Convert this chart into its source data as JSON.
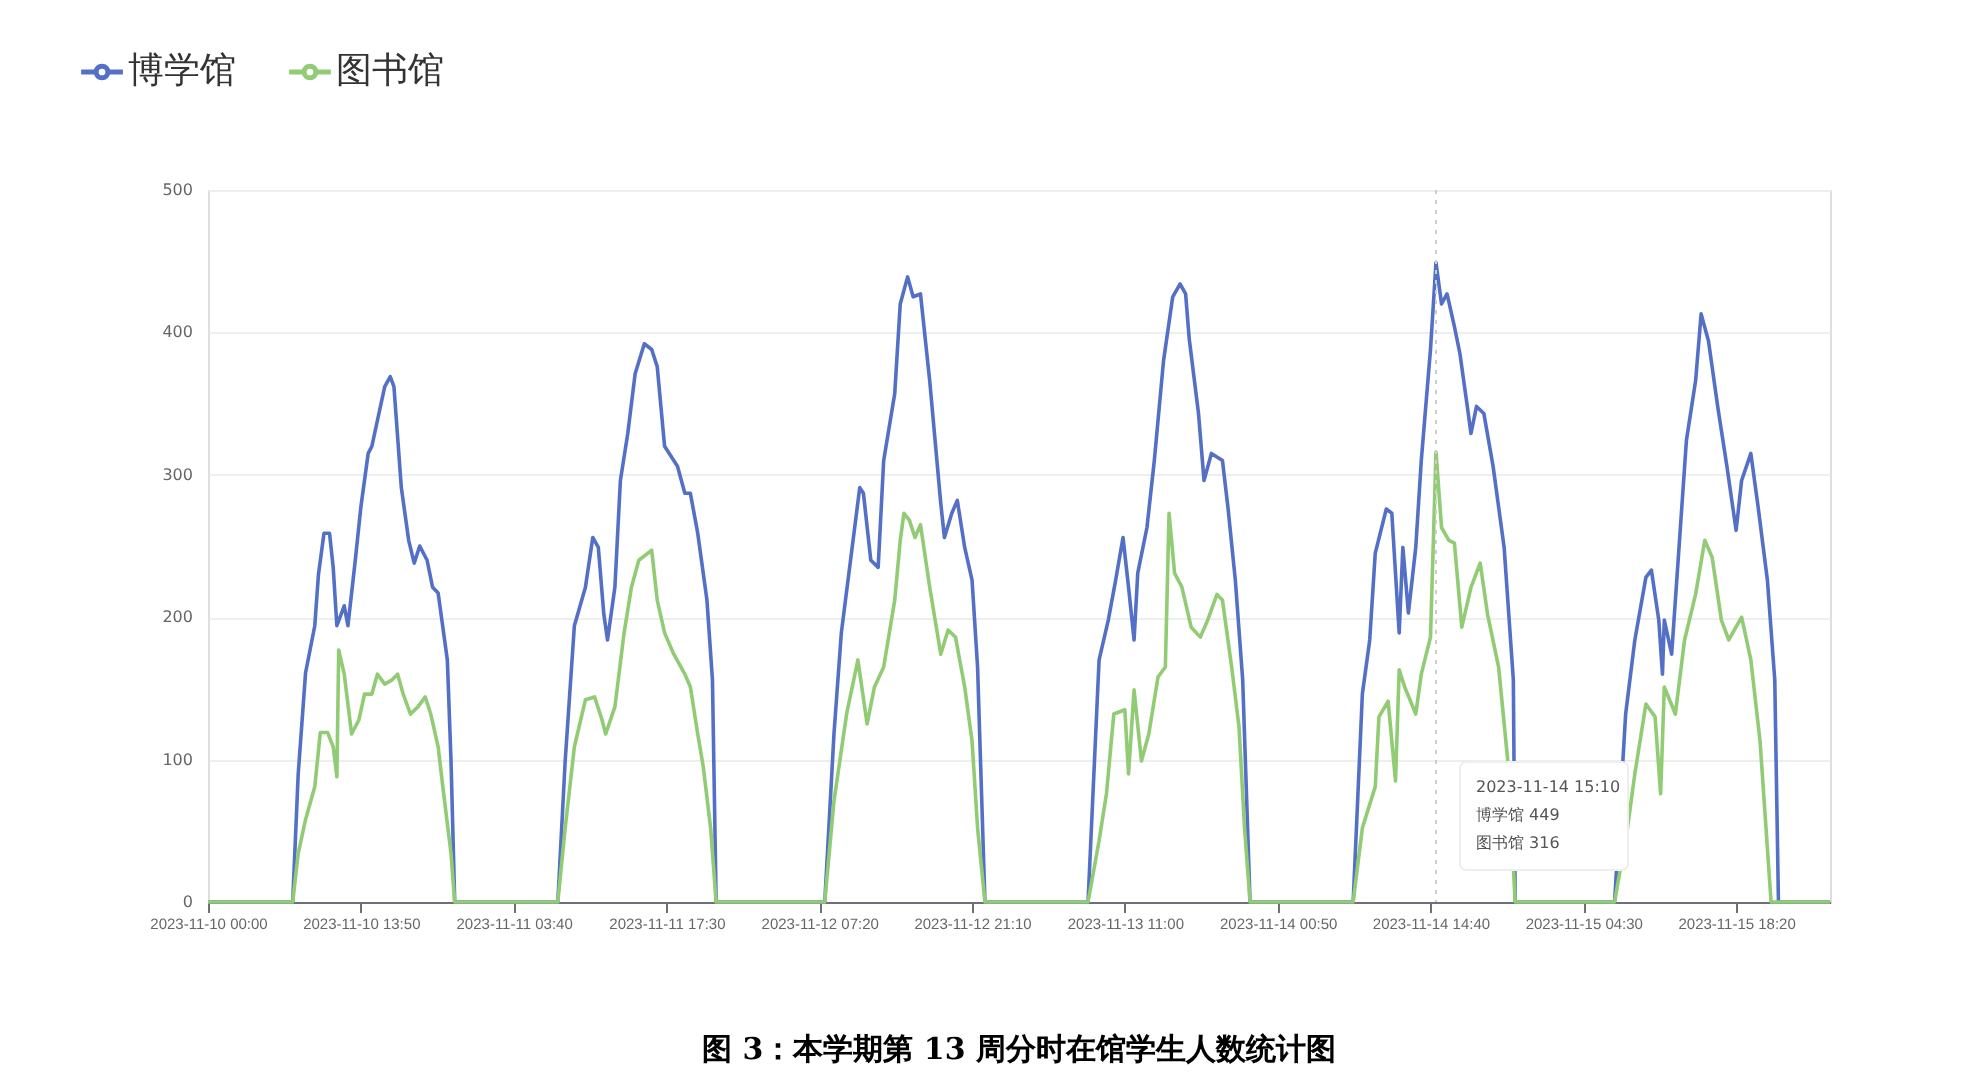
{
  "chart_data": {
    "type": "line",
    "title": "图 3：本学期第 13 周分时在馆学生人数统计图",
    "series": [
      {
        "name": "博学馆",
        "color": "#5470c6",
        "x": [
          "2023-11-10T00:00",
          "2023-11-10T07:40",
          "2023-11-10T08:10",
          "2023-11-10T08:50",
          "2023-11-10T09:40",
          "2023-11-10T10:00",
          "2023-11-10T10:30",
          "2023-11-10T11:00",
          "2023-11-10T11:20",
          "2023-11-10T11:40",
          "2023-11-10T12:20",
          "2023-11-10T12:40",
          "2023-11-10T13:20",
          "2023-11-10T13:50",
          "2023-11-10T14:30",
          "2023-11-10T14:50",
          "2023-11-10T15:20",
          "2023-11-10T16:00",
          "2023-11-10T16:30",
          "2023-11-10T16:50",
          "2023-11-10T17:30",
          "2023-11-10T18:10",
          "2023-11-10T18:40",
          "2023-11-10T19:10",
          "2023-11-10T19:50",
          "2023-11-10T20:20",
          "2023-11-10T20:50",
          "2023-11-10T21:40",
          "2023-11-10T22:00",
          "2023-11-10T22:20",
          "2023-11-11T07:40",
          "2023-11-11T08:20",
          "2023-11-11T09:10",
          "2023-11-11T10:10",
          "2023-11-11T10:50",
          "2023-11-11T11:20",
          "2023-11-11T11:50",
          "2023-11-11T12:10",
          "2023-11-11T12:50",
          "2023-11-11T13:20",
          "2023-11-11T14:00",
          "2023-11-11T14:40",
          "2023-11-11T15:30",
          "2023-11-11T16:10",
          "2023-11-11T16:40",
          "2023-11-11T17:20",
          "2023-11-11T18:30",
          "2023-11-11T19:10",
          "2023-11-11T19:40",
          "2023-11-11T20:20",
          "2023-11-11T21:10",
          "2023-11-11T21:40",
          "2023-11-11T22:00",
          "2023-11-12T07:50",
          "2023-11-12T08:40",
          "2023-11-12T09:20",
          "2023-11-12T10:10",
          "2023-11-12T11:00",
          "2023-11-12T11:20",
          "2023-11-12T12:00",
          "2023-11-12T12:40",
          "2023-11-12T13:10",
          "2023-11-12T14:10",
          "2023-11-12T14:40",
          "2023-11-12T15:20",
          "2023-11-12T15:50",
          "2023-11-12T16:30",
          "2023-11-12T17:20",
          "2023-11-12T18:20",
          "2023-11-12T18:40",
          "2023-11-12T19:20",
          "2023-11-12T19:50",
          "2023-11-12T20:30",
          "2023-11-12T21:10",
          "2023-11-12T21:40",
          "2023-11-12T22:20",
          "2023-11-13T07:40",
          "2023-11-13T08:40",
          "2023-11-13T09:30",
          "2023-11-13T10:10",
          "2023-11-13T10:50",
          "2023-11-13T11:20",
          "2023-11-13T11:50",
          "2023-11-13T12:10",
          "2023-11-13T13:00",
          "2023-11-13T13:40",
          "2023-11-13T14:30",
          "2023-11-13T15:20",
          "2023-11-13T16:00",
          "2023-11-13T16:30",
          "2023-11-13T16:50",
          "2023-11-13T17:40",
          "2023-11-13T18:10",
          "2023-11-13T18:50",
          "2023-11-13T19:50",
          "2023-11-13T20:20",
          "2023-11-13T21:00",
          "2023-11-13T21:40",
          "2023-11-13T22:20",
          "2023-11-14T07:40",
          "2023-11-14T08:30",
          "2023-11-14T09:10",
          "2023-11-14T09:40",
          "2023-11-14T10:40",
          "2023-11-14T11:10",
          "2023-11-14T11:50",
          "2023-11-14T12:10",
          "2023-11-14T12:40",
          "2023-11-14T13:20",
          "2023-11-14T13:50",
          "2023-11-14T14:40",
          "2023-11-14T15:10",
          "2023-11-14T15:40",
          "2023-11-14T16:10",
          "2023-11-14T16:50",
          "2023-11-14T17:20",
          "2023-11-14T18:00",
          "2023-11-14T18:20",
          "2023-11-14T18:50",
          "2023-11-14T19:30",
          "2023-11-14T20:20",
          "2023-11-14T21:20",
          "2023-11-14T22:10",
          "2023-11-14T22:20",
          "2023-11-15T07:20",
          "2023-11-15T08:20",
          "2023-11-15T09:10",
          "2023-11-15T10:10",
          "2023-11-15T10:40",
          "2023-11-15T11:20",
          "2023-11-15T11:40",
          "2023-11-15T11:50",
          "2023-11-15T12:30",
          "2023-11-15T13:10",
          "2023-11-15T13:50",
          "2023-11-15T14:40",
          "2023-11-15T15:10",
          "2023-11-15T15:50",
          "2023-11-15T16:40",
          "2023-11-15T17:30",
          "2023-11-15T18:20",
          "2023-11-15T18:50",
          "2023-11-15T19:40",
          "2023-11-15T20:20",
          "2023-11-15T21:10",
          "2023-11-15T21:50",
          "2023-11-15T22:10",
          "2023-11-16T02:50"
        ],
        "values": [
          0,
          0,
          90,
          161,
          194,
          230,
          259,
          259,
          235,
          194,
          208,
          194,
          240,
          277,
          315,
          320,
          338,
          362,
          369,
          362,
          291,
          254,
          238,
          250,
          240,
          221,
          217,
          170,
          99,
          0,
          0,
          99,
          194,
          221,
          256,
          249,
          202,
          184,
          221,
          296,
          329,
          371,
          392,
          388,
          376,
          320,
          306,
          287,
          287,
          259,
          212,
          156,
          0,
          0,
          118,
          189,
          240,
          291,
          287,
          240,
          235,
          310,
          357,
          420,
          439,
          425,
          427,
          366,
          280,
          256,
          273,
          282,
          249,
          226,
          165,
          0,
          0,
          170,
          198,
          226,
          256,
          221,
          184,
          231,
          263,
          310,
          380,
          425,
          434,
          427,
          395,
          343,
          296,
          315,
          310,
          277,
          226,
          156,
          0,
          0,
          146,
          184,
          245,
          276,
          273,
          189,
          249,
          203,
          249,
          310,
          388,
          449,
          420,
          427,
          404,
          385,
          348,
          329,
          348,
          343,
          306,
          249,
          156,
          0,
          0,
          132,
          184,
          228,
          233,
          198,
          160,
          198,
          174,
          249,
          324,
          366,
          413,
          394,
          348,
          306,
          261,
          296,
          315,
          277,
          226,
          156,
          0,
          0
        ]
      },
      {
        "name": "图书馆",
        "color": "#91cc75",
        "x": [
          "2023-11-10T00:00",
          "2023-11-10T07:40",
          "2023-11-10T08:10",
          "2023-11-10T08:50",
          "2023-11-10T09:40",
          "2023-11-10T10:10",
          "2023-11-10T10:50",
          "2023-11-10T11:20",
          "2023-11-10T11:40",
          "2023-11-10T11:50",
          "2023-11-10T12:20",
          "2023-11-10T13:00",
          "2023-11-10T13:40",
          "2023-11-10T14:10",
          "2023-11-10T14:50",
          "2023-11-10T15:20",
          "2023-11-10T16:00",
          "2023-11-10T16:40",
          "2023-11-10T17:10",
          "2023-11-10T17:40",
          "2023-11-10T18:20",
          "2023-11-10T19:00",
          "2023-11-10T19:40",
          "2023-11-10T20:10",
          "2023-11-10T20:50",
          "2023-11-10T21:20",
          "2023-11-10T22:00",
          "2023-11-10T22:20",
          "2023-11-11T07:40",
          "2023-11-11T08:20",
          "2023-11-11T09:10",
          "2023-11-11T10:10",
          "2023-11-11T11:00",
          "2023-11-11T11:40",
          "2023-11-11T12:00",
          "2023-11-11T12:50",
          "2023-11-11T13:40",
          "2023-11-11T14:20",
          "2023-11-11T15:00",
          "2023-11-11T16:10",
          "2023-11-11T16:40",
          "2023-11-11T17:20",
          "2023-11-11T18:10",
          "2023-11-11T19:10",
          "2023-11-11T19:40",
          "2023-11-11T20:20",
          "2023-11-11T20:50",
          "2023-11-11T21:30",
          "2023-11-11T22:00",
          "2023-11-12T07:50",
          "2023-11-12T08:40",
          "2023-11-12T09:50",
          "2023-11-12T10:50",
          "2023-11-12T11:40",
          "2023-11-12T12:20",
          "2023-11-12T13:10",
          "2023-11-12T14:10",
          "2023-11-12T14:40",
          "2023-11-12T15:00",
          "2023-11-12T15:30",
          "2023-11-12T16:00",
          "2023-11-12T16:30",
          "2023-11-12T17:20",
          "2023-11-12T18:20",
          "2023-11-12T19:00",
          "2023-11-12T19:40",
          "2023-11-12T20:30",
          "2023-11-12T21:10",
          "2023-11-12T21:40",
          "2023-11-12T22:20",
          "2023-11-13T07:40",
          "2023-11-13T08:40",
          "2023-11-13T09:20",
          "2023-11-13T10:00",
          "2023-11-13T11:00",
          "2023-11-13T11:20",
          "2023-11-13T11:50",
          "2023-11-13T12:30",
          "2023-11-13T13:10",
          "2023-11-13T14:00",
          "2023-11-13T14:40",
          "2023-11-13T15:00",
          "2023-11-13T15:30",
          "2023-11-13T16:10",
          "2023-11-13T17:00",
          "2023-11-13T17:50",
          "2023-11-13T18:30",
          "2023-11-13T19:20",
          "2023-11-13T19:50",
          "2023-11-13T20:40",
          "2023-11-13T21:20",
          "2023-11-13T21:50",
          "2023-11-13T22:20",
          "2023-11-14T07:40",
          "2023-11-14T08:30",
          "2023-11-14T09:40",
          "2023-11-14T10:00",
          "2023-11-14T10:50",
          "2023-11-14T11:30",
          "2023-11-14T11:50",
          "2023-11-14T12:20",
          "2023-11-14T13:20",
          "2023-11-14T13:50",
          "2023-11-14T14:40",
          "2023-11-14T15:10",
          "2023-11-14T15:40",
          "2023-11-14T16:20",
          "2023-11-14T16:50",
          "2023-11-14T17:30",
          "2023-11-14T18:20",
          "2023-11-14T19:10",
          "2023-11-14T19:50",
          "2023-11-14T20:50",
          "2023-11-14T21:40",
          "2023-11-14T22:20",
          "2023-11-15T07:20",
          "2023-11-15T08:30",
          "2023-11-15T09:10",
          "2023-11-15T10:10",
          "2023-11-15T11:00",
          "2023-11-15T11:30",
          "2023-11-15T11:50",
          "2023-11-15T12:50",
          "2023-11-15T13:40",
          "2023-11-15T14:40",
          "2023-11-15T15:30",
          "2023-11-15T16:10",
          "2023-11-15T17:00",
          "2023-11-15T17:40",
          "2023-11-15T18:50",
          "2023-11-15T19:40",
          "2023-11-15T20:30",
          "2023-11-15T21:30",
          "2023-11-16T02:50"
        ],
        "values": [
          0,
          0,
          34,
          58,
          81,
          119,
          119,
          109,
          88,
          177,
          160,
          118,
          128,
          146,
          146,
          160,
          153,
          156,
          160,
          146,
          132,
          137,
          144,
          132,
          109,
          76,
          34,
          0,
          0,
          52,
          109,
          142,
          144,
          128,
          118,
          137,
          189,
          221,
          240,
          247,
          212,
          189,
          174,
          160,
          151,
          118,
          95,
          52,
          0,
          0,
          71,
          133,
          170,
          125,
          151,
          165,
          212,
          254,
          273,
          268,
          256,
          265,
          221,
          174,
          191,
          186,
          151,
          113,
          52,
          0,
          0,
          43,
          76,
          132,
          135,
          90,
          149,
          99,
          118,
          158,
          165,
          273,
          231,
          221,
          193,
          186,
          198,
          216,
          212,
          165,
          123,
          52,
          0,
          0,
          52,
          81,
          130,
          141,
          85,
          163,
          151,
          132,
          160,
          186,
          316,
          263,
          254,
          252,
          193,
          221,
          238,
          202,
          165,
          99,
          0,
          0,
          52,
          90,
          139,
          130,
          76,
          151,
          132,
          184,
          216,
          254,
          242,
          198,
          184,
          200,
          170,
          113,
          0,
          0
        ]
      }
    ],
    "xlim": [
      "2023-11-10T00:00",
      "2023-11-16T02:50"
    ],
    "xticks": [
      {
        "value": "2023-11-10T00:00",
        "label": "2023-11-10 00:00"
      },
      {
        "value": "2023-11-10T13:50",
        "label": "2023-11-10 13:50"
      },
      {
        "value": "2023-11-11T03:40",
        "label": "2023-11-11 03:40"
      },
      {
        "value": "2023-11-11T17:30",
        "label": "2023-11-11 17:30"
      },
      {
        "value": "2023-11-12T07:20",
        "label": "2023-11-12 07:20"
      },
      {
        "value": "2023-11-12T21:10",
        "label": "2023-11-12 21:10"
      },
      {
        "value": "2023-11-13T11:00",
        "label": "2023-11-13 11:00"
      },
      {
        "value": "2023-11-14T00:50",
        "label": "2023-11-14 00:50"
      },
      {
        "value": "2023-11-14T14:40",
        "label": "2023-11-14 14:40"
      },
      {
        "value": "2023-11-15T04:30",
        "label": "2023-11-15 04:30"
      },
      {
        "value": "2023-11-15T18:20",
        "label": "2023-11-15 18:20"
      }
    ],
    "ylim": [
      0,
      500
    ],
    "yticks": [
      0,
      100,
      200,
      300,
      400,
      500
    ],
    "grid": "y",
    "legend": "top left",
    "marker": "none",
    "line_style": "solid",
    "ref_lines": [
      {
        "axis": "x",
        "value": "2023-11-14T15:10",
        "color": "#cccccc",
        "line_style": "dotted"
      }
    ],
    "annotations": [
      "2023-11-14 15:10",
      "博学馆 449",
      "图书馆 316"
    ]
  }
}
